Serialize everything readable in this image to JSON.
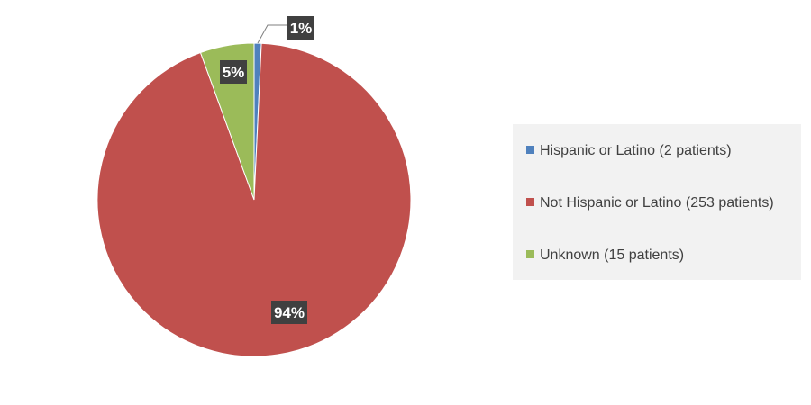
{
  "chart_data": {
    "type": "pie",
    "title": "",
    "categories": [
      "Hispanic or Latino (2 patients)",
      "Not Hispanic or Latino (253 patients)",
      "Unknown (15 patients)"
    ],
    "values": [
      2,
      253,
      15
    ],
    "data_labels": [
      "1%",
      "94%",
      "5%"
    ],
    "colors": [
      "#4f81bd",
      "#c0504d",
      "#9bbb59"
    ],
    "legend_position": "right",
    "start_angle_degrees": 0,
    "direction": "clockwise"
  }
}
